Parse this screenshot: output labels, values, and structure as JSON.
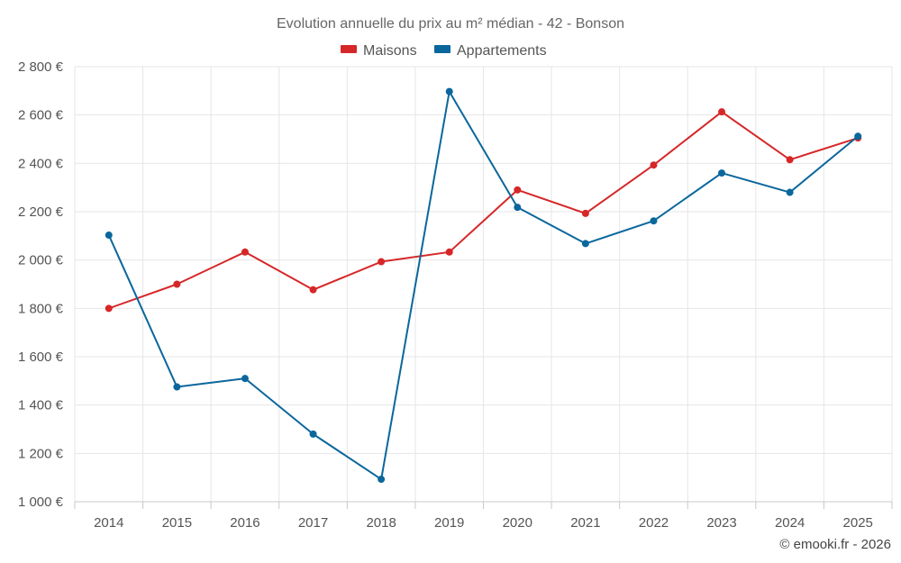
{
  "chart_data": {
    "type": "line",
    "title": "Evolution annuelle du prix au m² médian - 42 - Bonson",
    "categories": [
      "2014",
      "2015",
      "2016",
      "2017",
      "2018",
      "2019",
      "2020",
      "2021",
      "2022",
      "2023",
      "2024",
      "2025"
    ],
    "series": [
      {
        "name": "Maisons",
        "color": "#d62728",
        "values": [
          1800,
          1900,
          2033,
          1877,
          1993,
          2033,
          2290,
          2193,
          2393,
          2613,
          2415,
          2505
        ]
      },
      {
        "name": "Appartements",
        "color": "#0a679c",
        "values": [
          2103,
          1475,
          1510,
          1280,
          1093,
          2697,
          2218,
          2068,
          2162,
          2360,
          2280,
          2512
        ]
      }
    ],
    "ylim": [
      1000,
      2800
    ],
    "yticks": [
      1000,
      1200,
      1400,
      1600,
      1800,
      2000,
      2200,
      2400,
      2600,
      2800
    ],
    "ytick_labels": [
      "1 000 €",
      "1 200 €",
      "1 400 €",
      "1 600 €",
      "1 800 €",
      "2 000 €",
      "2 200 €",
      "2 400 €",
      "2 600 €",
      "2 800 €"
    ],
    "grid": true,
    "legend_position": "top-center",
    "xlabel": "",
    "ylabel": ""
  },
  "credit": "© emooki.fr - 2026"
}
